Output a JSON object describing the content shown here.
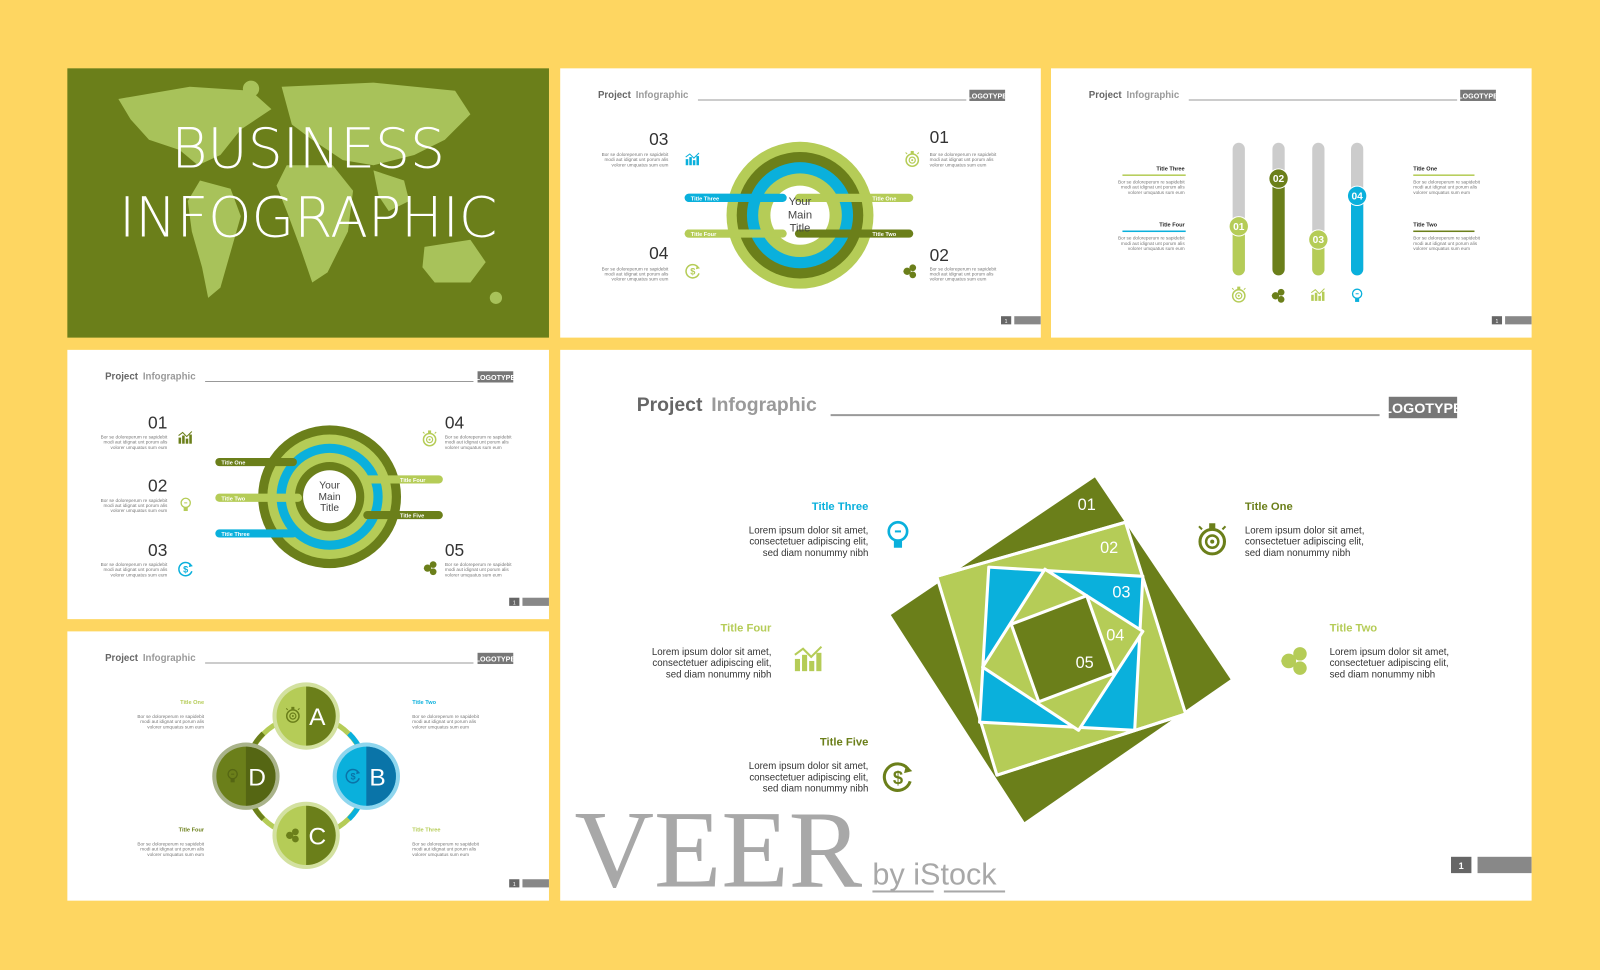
{
  "colors": {
    "background": "#fed661",
    "dark_green": "#6b7f1a",
    "light_green": "#b5cc57",
    "blue": "#0ab0dc",
    "grey": "#cccccc"
  },
  "header": {
    "project": "Project",
    "infographic": "Infographic",
    "logotype": "LOGOTYPE",
    "page": "1"
  },
  "filler": [
    "Bor se doloreperum re sapidebit",
    "modi aut idignat unt porum alis",
    "volorer umquatus sum eum"
  ],
  "cover": {
    "line1": "BUSINESS",
    "line2": "INFOGRAPHIC"
  },
  "ring_slide": {
    "center": [
      "Your",
      "Main",
      "Title"
    ],
    "numbers": [
      "01",
      "02",
      "03",
      "04"
    ],
    "bars": [
      "Title One",
      "Title Two",
      "Title Three",
      "Title Four"
    ],
    "icons": [
      "stopwatch-icon",
      "people-chat-icon",
      "bar-chart-icon",
      "dollar-cycle-icon"
    ]
  },
  "slider_slide": {
    "titles": [
      "Title One",
      "Title Two",
      "Title Three",
      "Title Four"
    ],
    "sliders": [
      {
        "label": "01",
        "level": 0.37
      },
      {
        "label": "02",
        "level": 0.73
      },
      {
        "label": "03",
        "level": 0.27
      },
      {
        "label": "04",
        "level": 0.6
      }
    ],
    "icons": [
      "stopwatch-icon",
      "people-chat-icon",
      "bar-chart-icon",
      "lightbulb-icon"
    ]
  },
  "ring5_slide": {
    "center": [
      "Your",
      "Main",
      "Title"
    ],
    "numbers": [
      "01",
      "02",
      "03",
      "04",
      "05"
    ],
    "bars": [
      "Title One",
      "Title Two",
      "Title Three",
      "Title Four",
      "Title Five"
    ],
    "icons": [
      "bar-chart-icon",
      "lightbulb-icon",
      "dollar-cycle-icon",
      "stopwatch-icon",
      "people-chat-icon"
    ]
  },
  "cycle_slide": {
    "letters": [
      "A",
      "B",
      "C",
      "D"
    ],
    "titles": [
      "Title One",
      "Title Two",
      "Title Three",
      "Title Four"
    ]
  },
  "main_slide": {
    "watermark": "VEER",
    "watermark_sub": "by iStock",
    "numbers": [
      "01",
      "02",
      "03",
      "04",
      "05"
    ],
    "titles": [
      "Title One",
      "Title Two",
      "Title Three",
      "Title Four",
      "Title Five"
    ],
    "body": [
      "Lorem ipsum dolor sit amet,",
      "consectetuer adipiscing elit,",
      "sed diam nonummy nibh"
    ]
  }
}
